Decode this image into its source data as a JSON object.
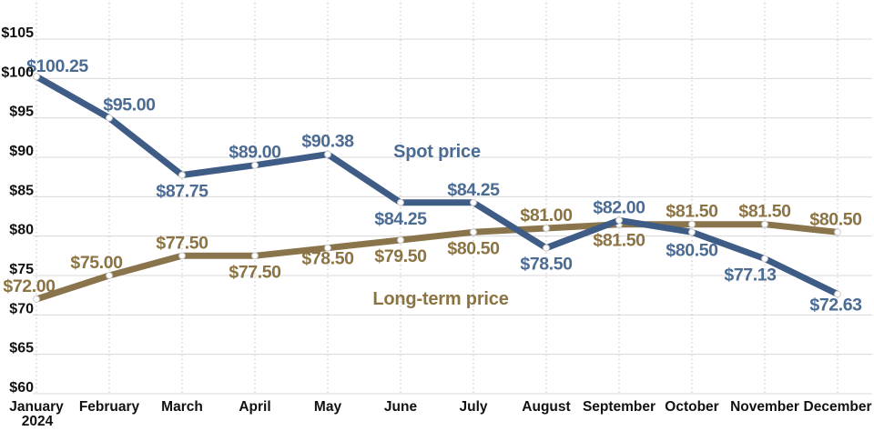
{
  "chart_data": {
    "type": "line",
    "title": "",
    "x_axis": {
      "categories": [
        {
          "label": "January",
          "sublabel": "2024"
        },
        {
          "label": "February"
        },
        {
          "label": "March"
        },
        {
          "label": "April"
        },
        {
          "label": "May"
        },
        {
          "label": "June"
        },
        {
          "label": "July"
        },
        {
          "label": "August"
        },
        {
          "label": "September"
        },
        {
          "label": "October"
        },
        {
          "label": "November"
        },
        {
          "label": "December"
        }
      ]
    },
    "y_axis": {
      "min": 60,
      "max": 105,
      "step": 5,
      "ticks": [
        {
          "value": 105,
          "label": "$105"
        },
        {
          "value": 100,
          "label": "$100"
        },
        {
          "value": 95,
          "label": "$95"
        },
        {
          "value": 90,
          "label": "$90"
        },
        {
          "value": 85,
          "label": "$85"
        },
        {
          "value": 80,
          "label": "$80"
        },
        {
          "value": 75,
          "label": "$75"
        },
        {
          "value": 70,
          "label": "$70"
        },
        {
          "value": 65,
          "label": "$65"
        },
        {
          "value": 60,
          "label": "$60"
        }
      ]
    },
    "grid": {
      "horizontal": "solid",
      "vertical": "dotted",
      "h_color": "#D8D8D8",
      "v_color": "#BDBDBD"
    },
    "series": [
      {
        "name": "Spot price",
        "line_color": "#3E5C86",
        "label_color": "#4A6B94",
        "values": [
          100.25,
          95.0,
          87.75,
          89.0,
          90.38,
          84.25,
          84.25,
          78.5,
          82.0,
          80.5,
          77.13,
          72.63
        ],
        "point_labels": [
          "$100.25",
          "$95.00",
          "$87.75",
          "$89.00",
          "$90.38",
          "$84.25",
          "$84.25",
          "$78.50",
          "$82.00",
          "$80.50",
          "$77.13",
          "$72.63"
        ],
        "label_positions": [
          "above",
          "above",
          "below",
          "above",
          "above",
          "below",
          "above",
          "below",
          "above",
          "below",
          "below",
          "below"
        ],
        "label_dx": [
          23,
          22,
          0,
          0,
          0,
          0,
          0,
          0,
          0,
          0,
          -16,
          -2
        ],
        "label_dy": [
          3,
          0,
          0,
          0,
          0,
          0,
          0,
          0,
          0,
          2,
          0,
          -6
        ],
        "annotation": {
          "text": "Spot price",
          "x": 480,
          "y": 173
        }
      },
      {
        "name": "Long-term price",
        "line_color": "#8A744C",
        "label_color": "#8B7342",
        "values": [
          72.0,
          75.0,
          77.5,
          77.5,
          78.5,
          79.5,
          80.5,
          81.0,
          81.5,
          81.5,
          81.5,
          80.5
        ],
        "point_labels": [
          "$72.00",
          "$75.00",
          "$77.50",
          "$77.50",
          "$78.50",
          "$79.50",
          "$80.50",
          "$81.00",
          "$81.50",
          "$81.50",
          "$81.50",
          "$80.50"
        ],
        "label_positions": [
          "above",
          "above",
          "above",
          "below",
          "below",
          "below",
          "below",
          "above",
          "below",
          "above",
          "above",
          "above"
        ],
        "label_dx": [
          -8,
          -14,
          0,
          0,
          0,
          0,
          0,
          0,
          0,
          0,
          0,
          -2
        ],
        "label_dy": [
          0,
          0,
          0,
          0,
          -6,
          0,
          0,
          0,
          0,
          0,
          0,
          0
        ],
        "annotation": {
          "text": "Long-term price",
          "x": 484,
          "y": 335
        }
      }
    ],
    "marker": {
      "fill": "#FFFFFF",
      "stroke": "#CCCCCC",
      "radius": 3.4
    },
    "layout": {
      "x_start": 40,
      "x_step": 80,
      "y_of_max": 43,
      "y_of_min": 433,
      "grid_left": 36,
      "grid_right": 958,
      "grid_top": 3,
      "line_width": 7,
      "x_label_y": 452,
      "x_sublabel_y": 468
    }
  }
}
